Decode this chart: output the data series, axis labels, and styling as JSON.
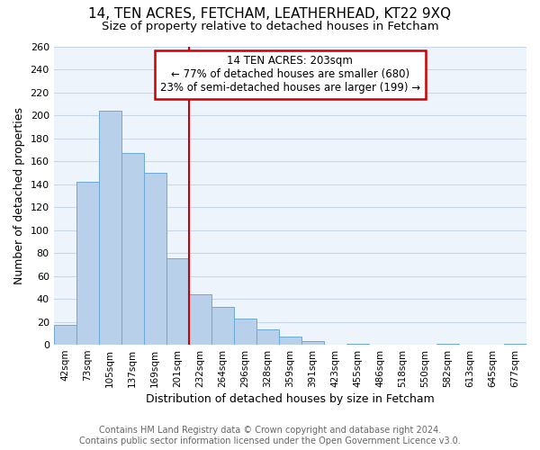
{
  "title1": "14, TEN ACRES, FETCHAM, LEATHERHEAD, KT22 9XQ",
  "title2": "Size of property relative to detached houses in Fetcham",
  "xlabel": "Distribution of detached houses by size in Fetcham",
  "ylabel": "Number of detached properties",
  "footnote1": "Contains HM Land Registry data © Crown copyright and database right 2024.",
  "footnote2": "Contains public sector information licensed under the Open Government Licence v3.0.",
  "bar_labels": [
    "42sqm",
    "73sqm",
    "105sqm",
    "137sqm",
    "169sqm",
    "201sqm",
    "232sqm",
    "264sqm",
    "296sqm",
    "328sqm",
    "359sqm",
    "391sqm",
    "423sqm",
    "455sqm",
    "486sqm",
    "518sqm",
    "550sqm",
    "582sqm",
    "613sqm",
    "645sqm",
    "677sqm"
  ],
  "bar_values": [
    17,
    142,
    204,
    167,
    150,
    75,
    44,
    33,
    23,
    13,
    7,
    3,
    0,
    1,
    0,
    0,
    0,
    1,
    0,
    0,
    1
  ],
  "bar_color": "#b8d0ea",
  "bar_edge_color": "#6aaad4",
  "grid_color": "#c8d8ea",
  "bg_color": "#eef4fb",
  "annotation_text": "14 TEN ACRES: 203sqm\n← 77% of detached houses are smaller (680)\n23% of semi-detached houses are larger (199) →",
  "vline_color": "#cc0000",
  "annotation_box_color": "#cc0000",
  "ylim": [
    0,
    260
  ],
  "yticks": [
    0,
    20,
    40,
    60,
    80,
    100,
    120,
    140,
    160,
    180,
    200,
    220,
    240,
    260
  ],
  "title1_fontsize": 11,
  "title2_fontsize": 9.5,
  "ylabel_fontsize": 9,
  "xlabel_fontsize": 9,
  "footnote_fontsize": 7,
  "annotation_fontsize": 8.5
}
